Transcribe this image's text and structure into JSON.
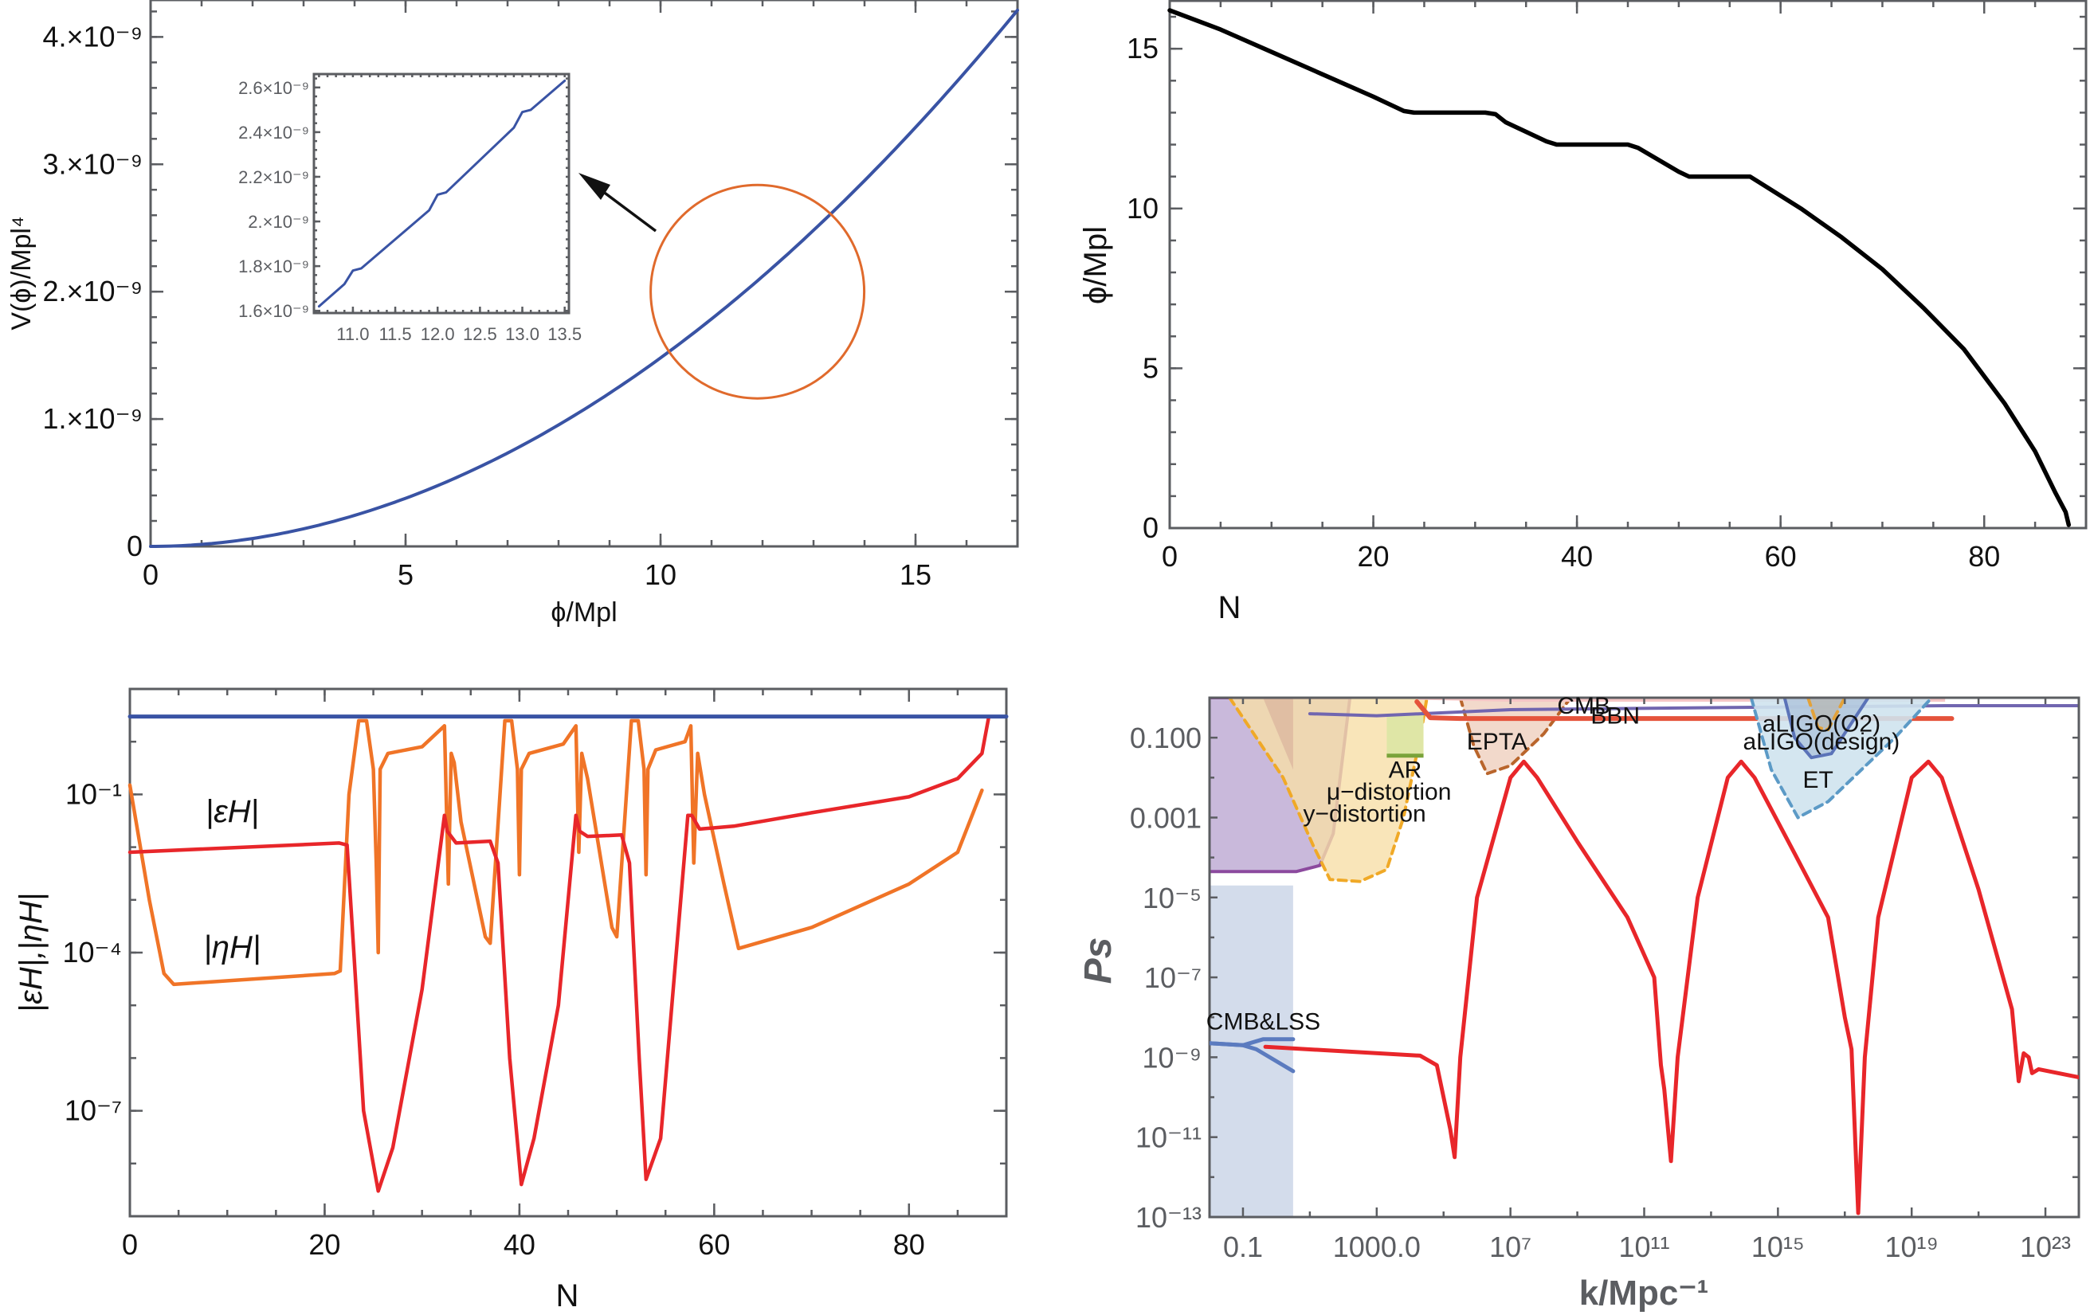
{
  "chart_data": [
    {
      "id": "potential",
      "type": "line",
      "xlabel": "ϕ/Mpl",
      "ylabel": "V(ϕ)/Mpl⁴",
      "xlim": [
        0,
        17
      ],
      "ylim": [
        0,
        4.29e-09
      ],
      "xticks": [
        0,
        5,
        10,
        15
      ],
      "xtick_labels": [
        "0",
        "5",
        "10",
        "15"
      ],
      "yticks": [
        0,
        1e-09,
        2e-09,
        3e-09,
        4e-09
      ],
      "ytick_labels": [
        "0",
        "1.×10⁻⁹",
        "2.×10⁻⁹",
        "3.×10⁻⁹",
        "4.×10⁻⁹"
      ],
      "series": [
        {
          "name": "V",
          "color": "#3953a4",
          "x": [
            0,
            1,
            2,
            3,
            4,
            5,
            6,
            7,
            8,
            9,
            10,
            11,
            12,
            13,
            14,
            15,
            16,
            17
          ],
          "y": [
            0,
            2e-11,
            7e-11,
            1.5e-10,
            2.5e-10,
            3.7e-10,
            5.1e-10,
            6.8e-10,
            8.8e-10,
            1.11e-09,
            1.4e-09,
            1.72e-09,
            2.07e-09,
            2.45e-09,
            2.85e-09,
            3.27e-09,
            3.72e-09,
            4.21e-09
          ]
        }
      ],
      "annotation_circle": {
        "center": [
          11.9,
          2e-09
        ],
        "color": "#e06a2c"
      },
      "inset": {
        "xlim": [
          10.54,
          13.55
        ],
        "ylim": [
          1.59e-09,
          2.66e-09
        ],
        "xticks": [
          11.0,
          11.5,
          12.0,
          12.5,
          13.0,
          13.5
        ],
        "xtick_labels": [
          "11.0",
          "11.5",
          "12.0",
          "12.5",
          "13.0",
          "13.5"
        ],
        "yticks": [
          1.6e-09,
          1.8e-09,
          2e-09,
          2.2e-09,
          2.4e-09,
          2.6e-09
        ],
        "ytick_labels": [
          "1.6×10⁻⁹",
          "1.8×10⁻⁹",
          "2.×10⁻⁹",
          "2.2×10⁻⁹",
          "2.4×10⁻⁹",
          "2.6×10⁻⁹"
        ],
        "series": {
          "x": [
            10.6,
            10.9,
            11.0,
            11.1,
            11.9,
            12.0,
            12.1,
            12.9,
            13.0,
            13.1,
            13.5
          ],
          "y": [
            1.62e-09,
            1.72e-09,
            1.78e-09,
            1.79e-09,
            2.05e-09,
            2.12e-09,
            2.13e-09,
            2.42e-09,
            2.49e-09,
            2.5e-09,
            2.63e-09
          ]
        }
      }
    },
    {
      "id": "field-evolution",
      "type": "line",
      "xlabel": "N",
      "ylabel": "ϕ/Mpl",
      "xlim": [
        0,
        90
      ],
      "ylim": [
        0,
        16.5
      ],
      "xticks": [
        0,
        20,
        40,
        60,
        80
      ],
      "xtick_labels": [
        "0",
        "20",
        "40",
        "60",
        "80"
      ],
      "yticks": [
        0,
        5,
        10,
        15
      ],
      "ytick_labels": [
        "0",
        "5",
        "10",
        "15"
      ],
      "series": [
        {
          "name": "phi",
          "color": "#000000",
          "x": [
            0,
            5,
            10,
            15,
            20,
            23,
            24,
            31,
            32,
            33,
            37,
            38,
            45,
            46,
            50,
            51,
            57,
            58,
            62,
            66,
            70,
            74,
            78,
            82,
            85,
            87,
            88,
            88.3
          ],
          "y": [
            16.2,
            15.6,
            14.9,
            14.2,
            13.5,
            13.05,
            13.0,
            13.0,
            12.95,
            12.7,
            12.1,
            12.0,
            12.0,
            11.9,
            11.15,
            11.0,
            11.0,
            10.8,
            10.0,
            9.1,
            8.1,
            6.9,
            5.6,
            3.9,
            2.4,
            1.1,
            0.5,
            0.1
          ]
        }
      ]
    },
    {
      "id": "slow-roll",
      "type": "line",
      "xlabel": "N",
      "ylabel": "|εH|,|ηH|",
      "yscale": "log",
      "xlim": [
        0,
        90
      ],
      "ylim": [
        1e-09,
        10
      ],
      "xticks": [
        0,
        20,
        40,
        60,
        80
      ],
      "xtick_labels": [
        "0",
        "20",
        "40",
        "60",
        "80"
      ],
      "yticks": [
        1e-07,
        0.0001,
        0.1
      ],
      "ytick_labels": [
        "10⁻⁷",
        "10⁻⁴",
        "10⁻¹"
      ],
      "annotations": [
        {
          "text": "|εH|",
          "x": 10.5,
          "y": 0.03
        },
        {
          "text": "|ηH|",
          "x": 10.5,
          "y": 8e-05
        }
      ],
      "series": [
        {
          "name": "reference",
          "color": "#3953a4",
          "x": [
            0,
            90
          ],
          "y": [
            3,
            3
          ]
        },
        {
          "name": "|εH|",
          "color": "#e8262a",
          "x": [
            0,
            21.5,
            22.3,
            23,
            24,
            25.5,
            27,
            30,
            32.3,
            32.6,
            33.5,
            37,
            37.8,
            39,
            40.2,
            41.5,
            44,
            45.8,
            46.2,
            47,
            50.5,
            51.3,
            52.3,
            53,
            54.5,
            57.3,
            57.7,
            58.5,
            62,
            70,
            80,
            85,
            87.5,
            88.2
          ],
          "y": [
            0.008,
            0.012,
            0.011,
            0.0001,
            1e-07,
            3e-09,
            2e-08,
            2e-05,
            0.04,
            0.02,
            0.012,
            0.013,
            0.005,
            1e-06,
            4e-09,
            3e-08,
            1e-05,
            0.04,
            0.02,
            0.016,
            0.017,
            0.005,
            1e-06,
            5e-09,
            3e-08,
            0.04,
            0.04,
            0.022,
            0.025,
            0.045,
            0.09,
            0.2,
            0.6,
            3
          ]
        },
        {
          "name": "|ηH|",
          "color": "#f07427",
          "x": [
            0,
            2,
            3.5,
            4.5,
            21,
            21.6,
            22.5,
            23.5,
            24.3,
            25,
            25.3,
            25.5,
            25.7,
            26.5,
            30,
            32.3,
            32.7,
            33,
            33.3,
            34,
            36.5,
            37,
            38.5,
            39.2,
            39.8,
            40,
            40.2,
            41,
            44.5,
            45.8,
            46.1,
            46.4,
            47,
            49.5,
            50,
            51.5,
            52.2,
            52.8,
            53,
            53.2,
            54,
            57,
            57.6,
            57.9,
            58.3,
            59,
            61,
            62.5,
            70,
            80,
            85,
            87.5
          ],
          "y": [
            0.15,
            0.001,
            4e-05,
            2.5e-05,
            4e-05,
            4.5e-05,
            0.1,
            2.5,
            2.5,
            0.3,
            0.005,
            0.0001,
            0.3,
            0.6,
            0.8,
            2,
            0.002,
            0.6,
            0.4,
            0.03,
            0.0002,
            0.00015,
            2.5,
            2.5,
            0.3,
            0.003,
            0.3,
            0.6,
            0.9,
            2,
            0.008,
            0.6,
            0.2,
            0.0003,
            0.0002,
            2.5,
            2.5,
            0.3,
            0.003,
            0.3,
            0.7,
            1.0,
            2,
            0.005,
            0.6,
            0.1,
            0.002,
            0.00012,
            0.0003,
            0.002,
            0.008,
            0.12
          ]
        }
      ]
    },
    {
      "id": "power-spectrum",
      "type": "line",
      "xlabel": "k/Mpc⁻¹",
      "ylabel": "Ps",
      "xscale": "log",
      "yscale": "log",
      "xlim": [
        0.01,
        1e+24
      ],
      "ylim": [
        1e-13,
        1
      ],
      "xticks": [
        0.1,
        1000,
        10000000.0,
        100000000000.0,
        1000000000000000.0,
        1e+19,
        1e+23
      ],
      "xtick_labels": [
        "0.1",
        "1000.0",
        "10⁷",
        "10¹¹",
        "10¹⁵",
        "10¹⁹",
        "10²³"
      ],
      "yticks": [
        1e-13,
        1e-11,
        1e-09,
        1e-07,
        1e-05,
        0.001,
        0.1
      ],
      "ytick_labels": [
        "10⁻¹³",
        "10⁻¹¹",
        "10⁻⁹",
        "10⁻⁷",
        "10⁻⁵",
        "0.001",
        "0.100"
      ],
      "series": [
        {
          "name": "Ps",
          "color": "#e8262a",
          "log10_k": [
            -0.33,
            2,
            4.3,
            4.8,
            5.0,
            5.2,
            5.33,
            5.5,
            6.0,
            7.0,
            7.4,
            7.8,
            9,
            10.5,
            11.3,
            11.5,
            11.6,
            11.8,
            12.0,
            12.6,
            13.5,
            13.9,
            14.3,
            15.5,
            16.5,
            17.0,
            17.2,
            17.4,
            17.6,
            18.0,
            19.0,
            19.5,
            19.9,
            21,
            22.0,
            22.2,
            22.35,
            22.5,
            22.6,
            22.8,
            24
          ],
          "log10_P": [
            -8.74,
            -8.85,
            -8.96,
            -9.2,
            -10,
            -10.8,
            -11.5,
            -9.0,
            -5.0,
            -2.0,
            -1.6,
            -2.0,
            -3.6,
            -5.5,
            -7.0,
            -9.2,
            -9.8,
            -11.6,
            -9.0,
            -5.0,
            -2.0,
            -1.6,
            -2.0,
            -3.9,
            -5.5,
            -8.0,
            -8.8,
            -12.9,
            -9.0,
            -5.5,
            -2.0,
            -1.6,
            -2.0,
            -4.8,
            -7.8,
            -9.6,
            -8.9,
            -9.0,
            -9.4,
            -9.3,
            -9.5
          ]
        },
        {
          "name": "CMB&LSS",
          "color": "#5b7bbf"
        }
      ],
      "constraints": [
        {
          "label": "CMB&LSS",
          "log10_k": [
            -2,
            0.5
          ],
          "color": "#c8d3e6"
        },
        {
          "label": "y−distortion",
          "color": "#b7a2cf"
        },
        {
          "label": "μ−distortion",
          "color": "#f8dfa8"
        },
        {
          "label": "AR",
          "color": "#dfe6a6"
        },
        {
          "label": "EPTA",
          "color": "#f0d2c2"
        },
        {
          "label": "CMB",
          "color": "#f5c6c6"
        },
        {
          "label": "BBN",
          "color": "#e5533b"
        },
        {
          "label": "aLIGO(O2)",
          "color": "#e3a23a"
        },
        {
          "label": "aLIGO(design)",
          "color": "#5b73b8"
        },
        {
          "label": "ET",
          "color": "#cfe3ee"
        }
      ]
    }
  ]
}
